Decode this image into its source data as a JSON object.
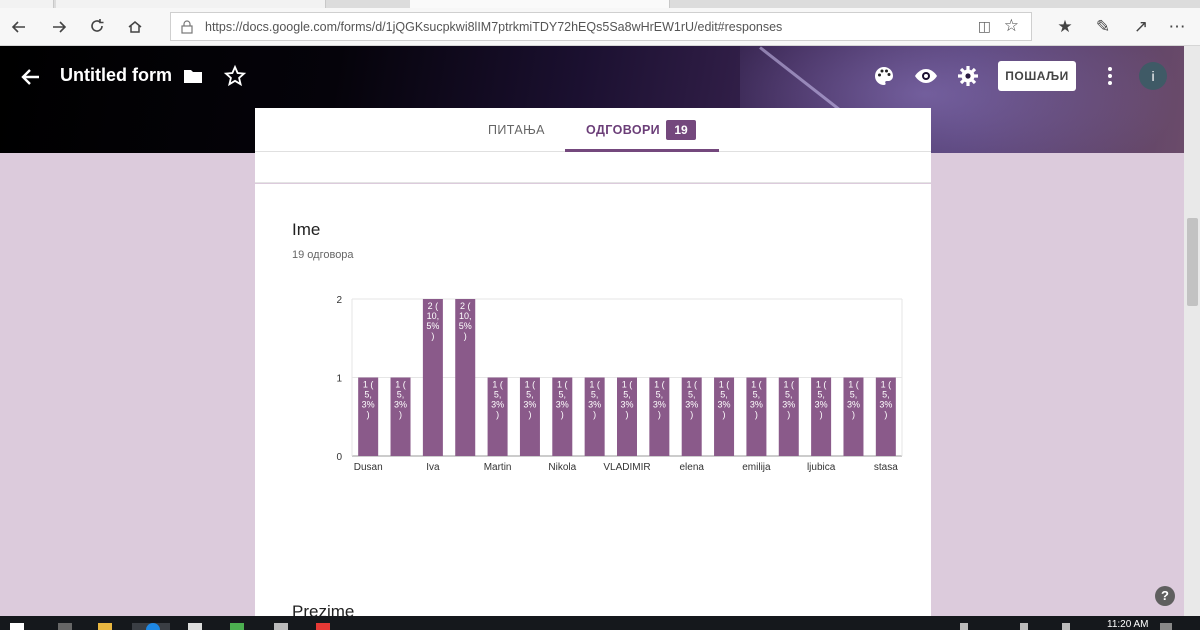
{
  "browser": {
    "url": "https://docs.google.com/forms/d/1jQGKsucpkwi8lIM7ptrkmiTDY72hEQs5Sa8wHrEW1rU/edit#responses"
  },
  "header": {
    "title": "Untitled form",
    "send_label": "ПОШАЉИ",
    "avatar_letter": "i"
  },
  "tabs": {
    "questions_label": "ПИТАЊА",
    "responses_label": "ОДГОВОРИ",
    "responses_count": "19"
  },
  "question": {
    "title": "Ime",
    "count_text": "19 одговора"
  },
  "next_question": {
    "title": "Prezime"
  },
  "help_label": "?",
  "taskbar": {
    "time": "11:20 AM"
  },
  "colors": {
    "bar": "#8a5a8a",
    "accent": "#74487d",
    "page_bg": "#dccbdc"
  },
  "chart_data": {
    "type": "bar",
    "categories": [
      "Dusan",
      "",
      "Iva",
      "",
      "Martin",
      "",
      "Nikola",
      "",
      "VLADIMIR",
      "",
      "elena",
      "",
      "emilija",
      "",
      "ljubica",
      "",
      "stasa"
    ],
    "values": [
      1,
      1,
      2,
      2,
      1,
      1,
      1,
      1,
      1,
      1,
      1,
      1,
      1,
      1,
      1,
      1,
      1
    ],
    "data_labels": [
      "1 ( 5, 3% )",
      "1 ( 5, 3% )",
      "2 ( 10, 5% )",
      "2 ( 10, 5% )",
      "1 ( 5, 3% )",
      "1 ( 5, 3% )",
      "1 ( 5, 3% )",
      "1 ( 5, 3% )",
      "1 ( 5, 3% )",
      "1 ( 5, 3% )",
      "1 ( 5, 3% )",
      "1 ( 5, 3% )",
      "1 ( 5, 3% )",
      "1 ( 5, 3% )",
      "1 ( 5, 3% )",
      "1 ( 5, 3% )",
      "1 ( 5, 3% )"
    ],
    "yticks": [
      "0",
      "1",
      "2"
    ],
    "ylim": [
      0,
      2
    ],
    "grid": true
  }
}
